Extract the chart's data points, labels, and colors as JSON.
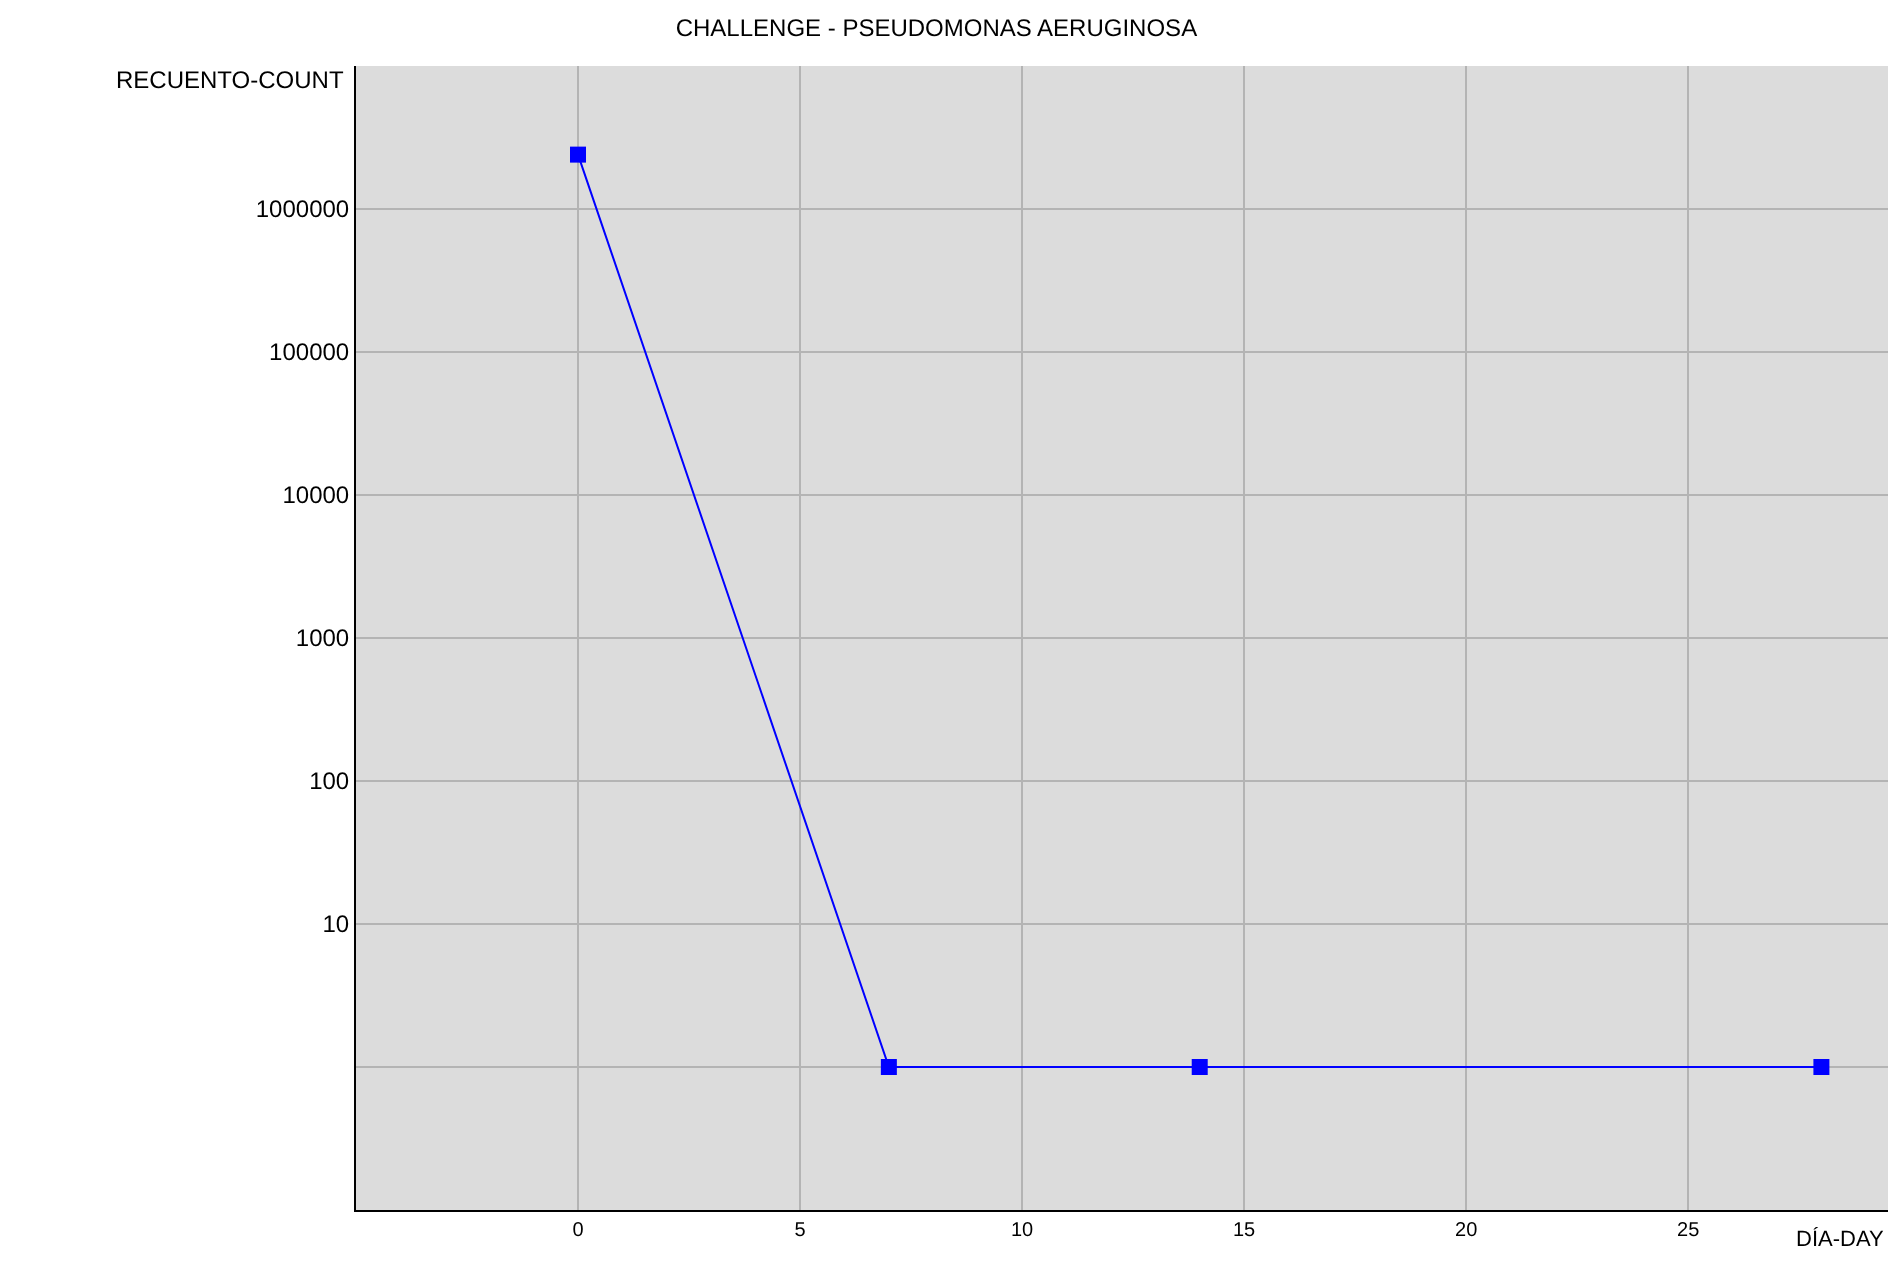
{
  "chart_data": {
    "type": "line",
    "title": "CHALLENGE - PSEUDOMONAS AERUGINOSA",
    "xlabel": "DÍA-DAY",
    "ylabel": "RECUENTO-COUNT",
    "x": [
      0,
      7,
      14,
      28
    ],
    "series": [
      {
        "color": "#0000ff",
        "values": [
          2400000,
          1,
          1,
          1
        ]
      }
    ],
    "xlim": [
      -5,
      29.5
    ],
    "xticks": [
      0,
      5,
      10,
      15,
      20,
      25
    ],
    "ylim": [
      0.1,
      10000000
    ],
    "yticks": [
      {
        "value": 1,
        "label": null
      },
      10,
      100,
      1000,
      10000,
      100000,
      1000000
    ],
    "log": "y",
    "grid": true,
    "legend": false,
    "marker": "square",
    "line_style": "solid"
  }
}
